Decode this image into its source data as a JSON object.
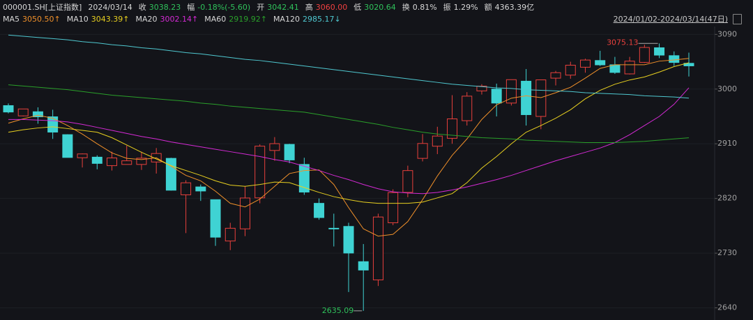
{
  "header": {
    "symbol": "000001.SH[上证指数]",
    "date": "2024/03/14",
    "items": [
      {
        "label": "收",
        "value": "3038.23",
        "color": "#2fc25b"
      },
      {
        "label": "幅",
        "value": "-0.18%(-5.60)",
        "color": "#2fc25b"
      },
      {
        "label": "开",
        "value": "3042.41",
        "color": "#2fc25b"
      },
      {
        "label": "高",
        "value": "3060.00",
        "color": "#f04040"
      },
      {
        "label": "低",
        "value": "3020.64",
        "color": "#2fc25b"
      },
      {
        "label": "换",
        "value": "0.81%",
        "color": "#d8d8d8"
      },
      {
        "label": "振",
        "value": "1.29%",
        "color": "#d8d8d8"
      },
      {
        "label": "额",
        "value": "4363.39亿",
        "color": "#d8d8d8"
      }
    ],
    "range": "2024/01/02-2024/03/14(47日)"
  },
  "chart_data": {
    "type": "candlestick",
    "open": [
      2972.8,
      2955.9,
      2962.7,
      2954.4,
      2925.0,
      2887.0,
      2888.0,
      2874.0,
      2876.0,
      2876.0,
      2880.0,
      2886.0,
      2826.0,
      2839.0,
      2818.0,
      2750.0,
      2770.0,
      2821.0,
      2899.0,
      2909.0,
      2876.0,
      2812.0,
      2771.0,
      2774.0,
      2716.0,
      2686.0,
      2780.0,
      2830.0,
      2886.0,
      2906.0,
      2919.0,
      2948.0,
      2997.0,
      3000.0,
      2977.0,
      3013.0,
      2955.0,
      3018.0,
      3023.0,
      3036.0,
      3047.0,
      3040.0,
      3025.0,
      3044.0,
      3068.0,
      3055.0,
      3042.41
    ],
    "high": [
      2976.3,
      2967.3,
      2970.0,
      2966.0,
      2925.6,
      2894.0,
      2891.0,
      2897.0,
      2907.0,
      2897.0,
      2903.0,
      2887.0,
      2850.0,
      2843.0,
      2818.0,
      2780.0,
      2840.0,
      2909.0,
      2921.0,
      2910.0,
      2887.0,
      2820.0,
      2795.0,
      2780.0,
      2745.0,
      2795.0,
      2835.0,
      2874.0,
      2926.0,
      2938.0,
      2990.0,
      2995.0,
      3008.0,
      3009.0,
      3015.5,
      3033.0,
      3015.2,
      3030.0,
      3045.0,
      3050.0,
      3063.0,
      3053.0,
      3053.0,
      3073.0,
      3075.13,
      3062.0,
      3060.0
    ],
    "low": [
      2960.0,
      2955.0,
      2943.0,
      2918.0,
      2887.5,
      2871.0,
      2868.0,
      2866.0,
      2878.0,
      2867.0,
      2861.0,
      2833.0,
      2763.0,
      2816.0,
      2742.0,
      2735.0,
      2758.0,
      2812.0,
      2882.0,
      2878.0,
      2826.0,
      2785.0,
      2741.0,
      2666.0,
      2635.09,
      2676.0,
      2776.0,
      2822.0,
      2881.0,
      2893.0,
      2910.0,
      2940.0,
      2991.0,
      2955.0,
      2973.0,
      2940.0,
      2934.0,
      3006.0,
      3017.0,
      3027.0,
      3038.0,
      3025.0,
      3024.0,
      3043.0,
      3051.0,
      3038.0,
      3020.64
    ],
    "close": [
      2962.3,
      2967.3,
      2954.4,
      2929.2,
      2887.5,
      2893.3,
      2877.7,
      2886.7,
      2882.0,
      2886.3,
      2894.0,
      2833.6,
      2845.8,
      2832.3,
      2756.3,
      2771.0,
      2820.8,
      2906.1,
      2910.2,
      2883.4,
      2830.5,
      2788.6,
      2770.7,
      2730.2,
      2702.2,
      2789.5,
      2829.7,
      2865.9,
      2910.5,
      2922.7,
      2951.0,
      2988.4,
      3004.9,
      2977.0,
      3015.5,
      2957.9,
      3015.2,
      3027.0,
      3039.3,
      3047.8,
      3039.9,
      3027.4,
      3046.0,
      3068.5,
      3055.9,
      3043.8,
      3038.23
    ],
    "up_color": "#e8403c",
    "down_color": "#3fd3d3",
    "series": [
      {
        "name": "MA5",
        "color": "#f0902a",
        "value_label": "3050.50↑",
        "values": [
          2944,
          2951,
          2957,
          2952,
          2940,
          2926,
          2910,
          2895,
          2886,
          2884,
          2887,
          2873,
          2858,
          2849,
          2832,
          2812,
          2806,
          2819,
          2840,
          2861,
          2866,
          2867,
          2843,
          2805,
          2770,
          2758,
          2761,
          2782,
          2818,
          2857,
          2891,
          2918,
          2950,
          2974,
          2985,
          2989,
          2986,
          2994,
          3003,
          3018,
          3034,
          3040,
          3040,
          3040,
          3046,
          3048,
          3050.5
        ]
      },
      {
        "name": "MA10",
        "color": "#e8d020",
        "value_label": "3043.39↑",
        "values": [
          2929,
          2933,
          2936,
          2938,
          2935,
          2932,
          2929,
          2920,
          2908,
          2896,
          2885,
          2874,
          2866,
          2858,
          2849,
          2842,
          2840,
          2843,
          2847,
          2846,
          2838,
          2830,
          2823,
          2818,
          2814,
          2812,
          2812,
          2812,
          2814,
          2821,
          2828,
          2846,
          2870,
          2889,
          2910,
          2929,
          2940,
          2952,
          2966,
          2984,
          2998,
          3008,
          3015,
          3020,
          3028,
          3037,
          3043.39
        ]
      },
      {
        "name": "MA20",
        "color": "#d42ad4",
        "value_label": "3002.14↑",
        "values": [
          2950,
          2950,
          2949,
          2948,
          2946,
          2942,
          2937,
          2932,
          2927,
          2922,
          2918,
          2913,
          2909,
          2905,
          2901,
          2897,
          2893,
          2889,
          2884,
          2880,
          2873,
          2866,
          2858,
          2851,
          2843,
          2836,
          2831,
          2829,
          2828,
          2830,
          2834,
          2839,
          2845,
          2851,
          2858,
          2866,
          2874,
          2882,
          2889,
          2896,
          2903,
          2912,
          2925,
          2940,
          2955,
          2975,
          3002.14
        ]
      },
      {
        "name": "MA60",
        "color": "#2aa02a",
        "value_label": "2919.92↑",
        "values": [
          3007,
          3005,
          3003,
          3001,
          2999,
          2996,
          2993,
          2990,
          2988,
          2986,
          2984,
          2982,
          2980,
          2977,
          2975,
          2972,
          2970,
          2968,
          2966,
          2964,
          2962,
          2958,
          2954,
          2950,
          2946,
          2942,
          2937,
          2933,
          2929,
          2926,
          2924,
          2922,
          2920,
          2919,
          2918,
          2916,
          2915,
          2914,
          2913,
          2912,
          2912,
          2912,
          2913,
          2914,
          2916,
          2918,
          2919.92
        ]
      },
      {
        "name": "MA120",
        "color": "#4fc8d0",
        "value_label": "2985.17↓",
        "values": [
          3089,
          3087,
          3085,
          3083,
          3081,
          3078,
          3076,
          3073,
          3071,
          3068,
          3066,
          3063,
          3060,
          3058,
          3055,
          3052,
          3049,
          3047,
          3044,
          3041,
          3038,
          3035,
          3032,
          3029,
          3026,
          3023,
          3020,
          3017,
          3014,
          3011,
          3008,
          3006,
          3004,
          3002,
          3001,
          2999,
          2998,
          2997,
          2996,
          2994,
          2993,
          2992,
          2991,
          2989,
          2988,
          2987,
          2985.17
        ]
      }
    ],
    "annotations": {
      "high": "3075.13",
      "low": "2635.09"
    },
    "ylim": [
      2620,
      3103
    ],
    "yticks": [
      2640,
      2730,
      2820,
      2910,
      3000,
      3090
    ]
  }
}
